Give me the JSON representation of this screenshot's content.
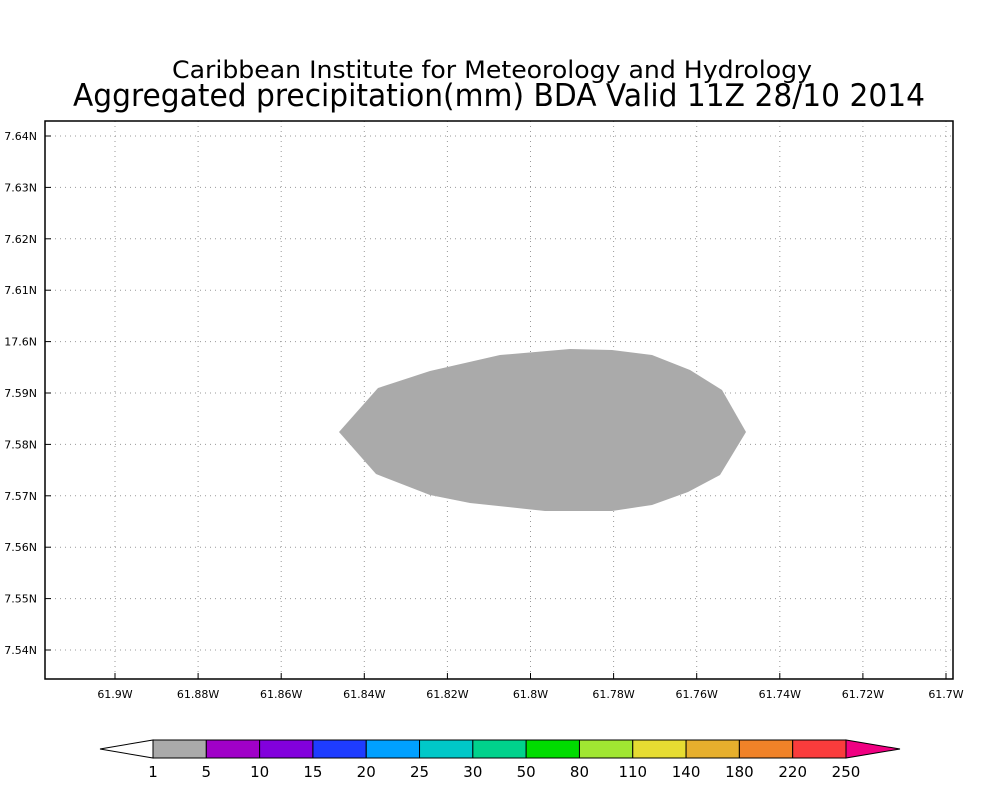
{
  "header": {
    "title": "Caribbean Institute for Meteorology and Hydrology",
    "subtitle": "Aggregated precipitation(mm) BDA Valid 11Z 28/10 2014"
  },
  "map": {
    "x_labels": [
      "61.9W",
      "61.88W",
      "61.86W",
      "61.84W",
      "61.82W",
      "61.8W",
      "61.78W",
      "61.76W",
      "61.74W",
      "61.72W",
      "61.7W"
    ],
    "y_labels": [
      "7.64N",
      "7.63N",
      "7.62N",
      "7.61N",
      "17.6N",
      "7.59N",
      "7.58N",
      "7.57N",
      "7.56N",
      "7.55N",
      "7.54N"
    ],
    "grid": true
  },
  "colorbar": {
    "labels": [
      1,
      5,
      10,
      15,
      20,
      25,
      30,
      50,
      80,
      110,
      140,
      180,
      220,
      250
    ],
    "colors": [
      "#aaaaaa",
      "#a000c8",
      "#8200dc",
      "#1e3cff",
      "#00a0ff",
      "#00c8c8",
      "#00d28c",
      "#00dc00",
      "#a0e632",
      "#e6dc32",
      "#e6af2d",
      "#f08228",
      "#fa3c3c"
    ],
    "under_color": "#ffffff",
    "over_color": "#f00082"
  }
}
